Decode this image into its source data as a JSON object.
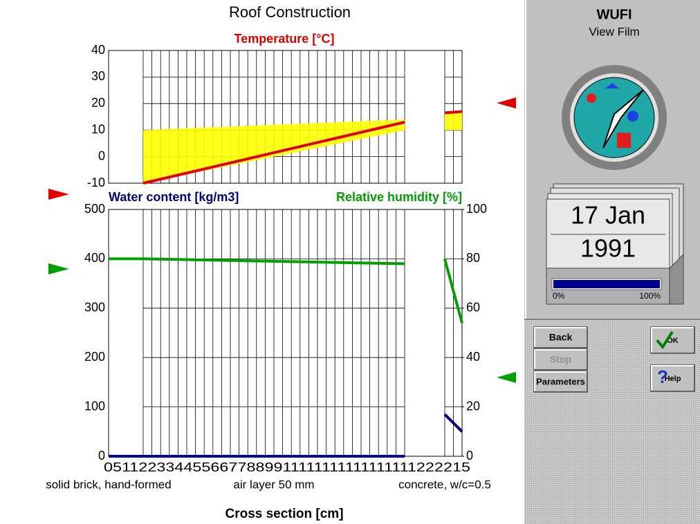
{
  "title": "Roof Construction",
  "temperature_chart": {
    "type": "line",
    "title": "Temperature [°C]",
    "x": [
      9.8,
      83.8,
      89,
      95.1,
      100
    ],
    "xlim": [
      0,
      100
    ],
    "ylim": [
      -10,
      40
    ],
    "yticks": [
      -10,
      0,
      10,
      20,
      30,
      40
    ],
    "grid": true,
    "series": [
      {
        "color": "#e00000",
        "values": [
          -10,
          13,
          null,
          16.5,
          17
        ]
      }
    ],
    "range": {
      "color": "#ffff00",
      "low": [
        -10,
        10,
        null,
        10,
        10
      ],
      "high": [
        10,
        14,
        null,
        17,
        17
      ]
    }
  },
  "moisture_chart": {
    "type": "line",
    "y_label": "Water content [kg/m3]",
    "y2_label": "Relative humidity [%]",
    "x": [
      0,
      9.8,
      83.8,
      89,
      95.1,
      100
    ],
    "xlim": [
      0,
      100
    ],
    "ylim": [
      0,
      500
    ],
    "yticks": [
      0,
      100,
      200,
      300,
      400,
      500
    ],
    "y2lim": [
      0,
      100
    ],
    "y2ticks": [
      0,
      20,
      40,
      60,
      80,
      100
    ],
    "grid": true,
    "series": [
      {
        "color": "#000080",
        "values": [
          0,
          0,
          0,
          null,
          85,
          50
        ]
      },
      {
        "color": "#00a000",
        "axis": "y2",
        "values": [
          80,
          80,
          78,
          null,
          80,
          54
        ]
      }
    ]
  },
  "x_axis": {
    "tick_text": "0511223344556677889911111111111111111222215",
    "label": "Cross section [cm]",
    "layers": [
      "solid brick, hand-formed",
      "air layer 50 mm",
      "concrete, w/c=0.5"
    ]
  },
  "panel": {
    "title": "WUFI",
    "subtitle": "View Film",
    "date_day": "17 Jan",
    "date_year": "1991",
    "progress_min": "0%",
    "progress_max": "100%",
    "progress": 100
  },
  "buttons": [
    "Back",
    "Stop",
    "Parameters"
  ],
  "dialog_buttons": [
    "OK",
    "Help"
  ]
}
